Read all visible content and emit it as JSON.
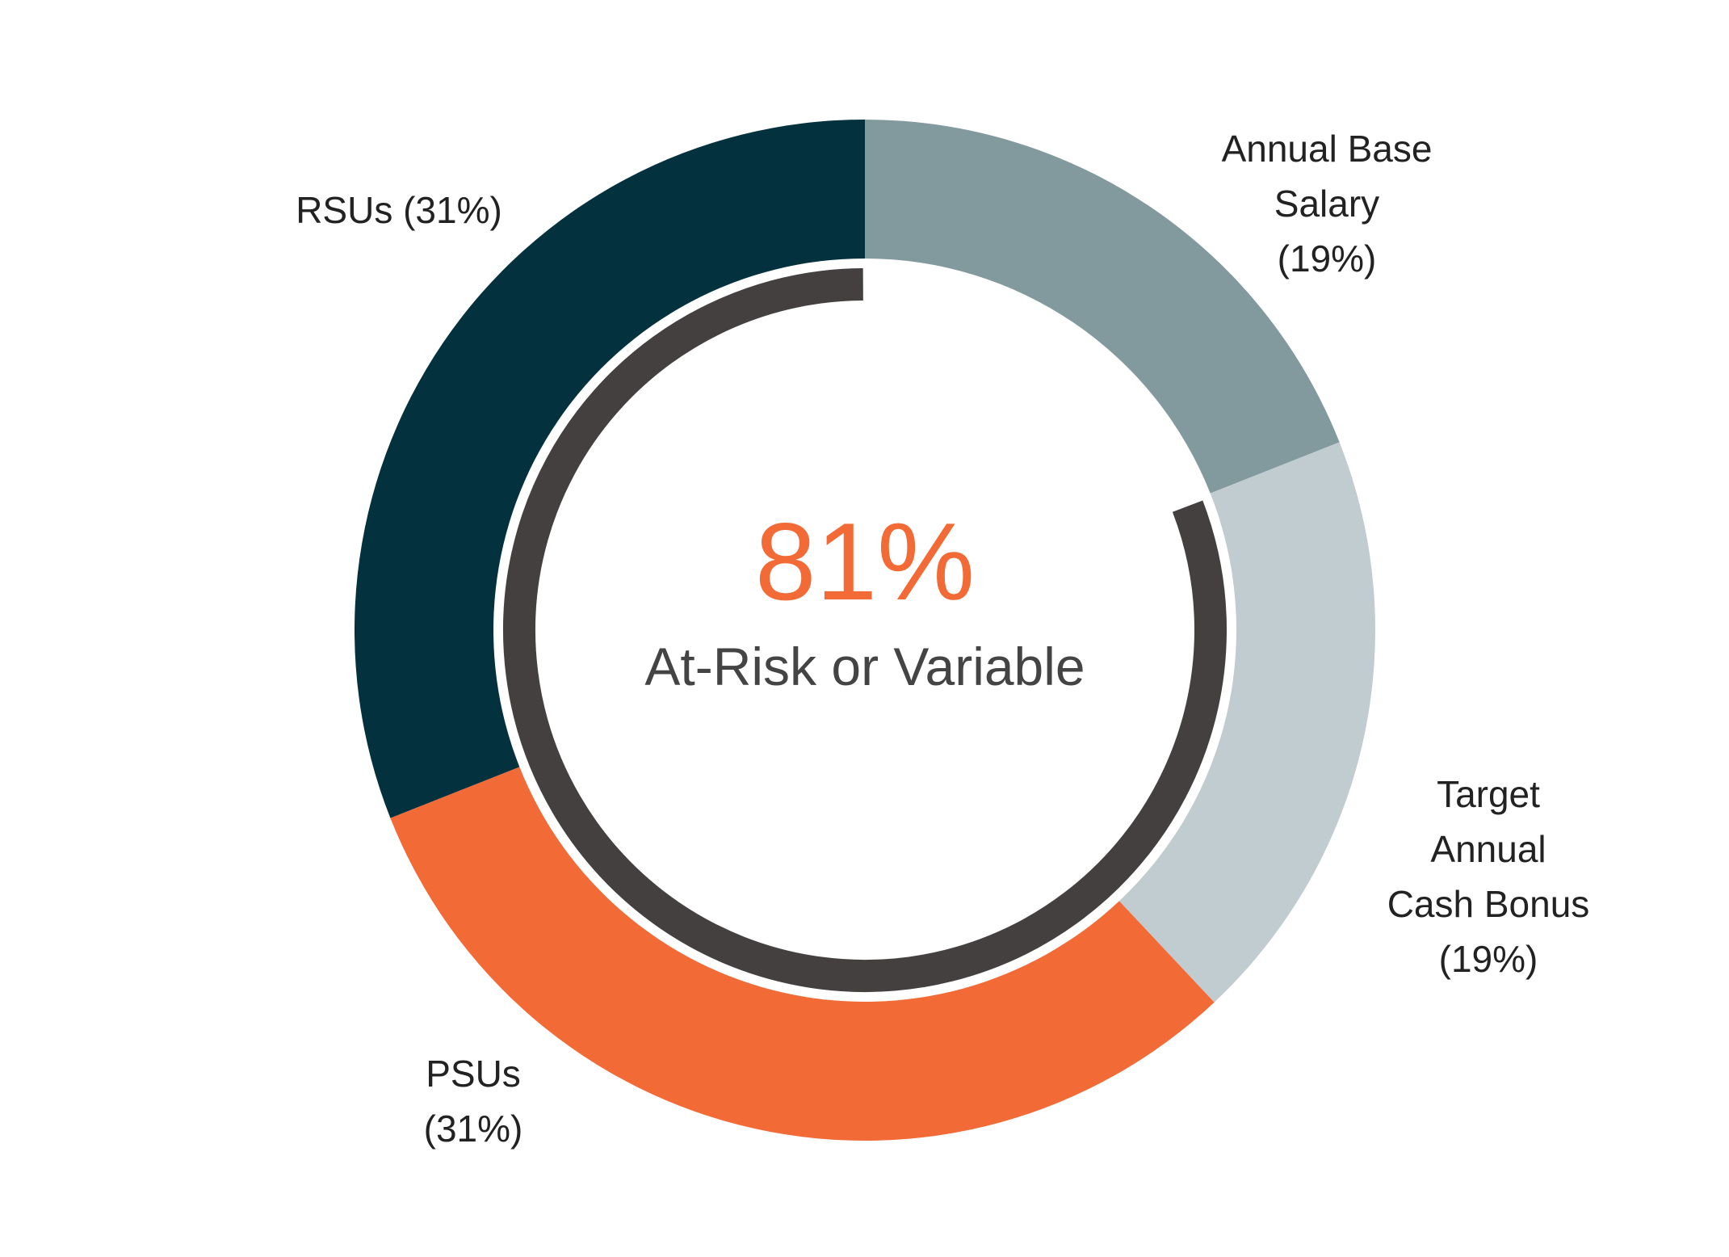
{
  "chart_data": {
    "type": "pie",
    "variant": "donut",
    "title": "",
    "slices": [
      {
        "name": "Annual Base Salary",
        "label_lines": [
          "Annual Base",
          "Salary",
          "(19%)"
        ],
        "value": 19,
        "color": "#82999e"
      },
      {
        "name": "Target Annual Cash Bonus",
        "label_lines": [
          "Target",
          "Annual",
          "Cash Bonus",
          "(19%)"
        ],
        "value": 19,
        "color": "#c0ccd0"
      },
      {
        "name": "PSUs",
        "label_lines": [
          "PSUs",
          "(31%)"
        ],
        "value": 31,
        "color": "#f26a36"
      },
      {
        "name": "RSUs",
        "label_lines": [
          "RSUs (31%)"
        ],
        "value": 31,
        "color": "#03313e"
      }
    ],
    "center": {
      "value": "81%",
      "caption": "At-Risk or Variable",
      "value_color": "#f26a36",
      "caption_color": "#444444"
    },
    "at_risk_arc": {
      "covers": [
        "Target Annual Cash Bonus",
        "PSUs",
        "RSUs"
      ],
      "share": 81,
      "color": "#444040"
    },
    "legend": "none"
  }
}
